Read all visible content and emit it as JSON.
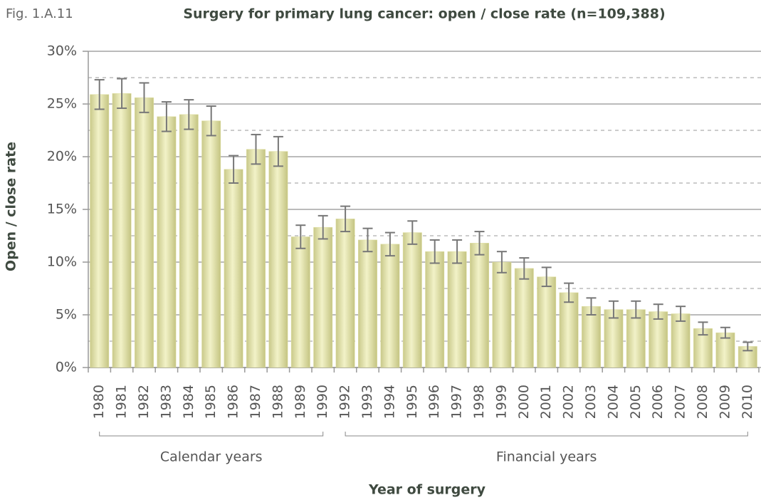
{
  "chart_data": {
    "type": "bar",
    "figure_label": "Fig. 1.A.11",
    "title": "Surgery for primary lung cancer: open / close rate (n=109,388)",
    "x_label": "Year of surgery",
    "y_label": "Open / close rate",
    "categories": [
      "1980",
      "1981",
      "1982",
      "1983",
      "1984",
      "1985",
      "1986",
      "1987",
      "1988",
      "1989",
      "1990",
      "1992",
      "1993",
      "1994",
      "1995",
      "1996",
      "1997",
      "1998",
      "1999",
      "2000",
      "2001",
      "2002",
      "2003",
      "2004",
      "2005",
      "2006",
      "2007",
      "2008",
      "2009",
      "2010"
    ],
    "values": [
      25.9,
      26.0,
      25.6,
      23.8,
      24.0,
      23.4,
      18.8,
      20.7,
      20.5,
      12.4,
      13.3,
      14.1,
      12.1,
      11.7,
      12.8,
      11.0,
      11.0,
      11.8,
      10.0,
      9.4,
      8.6,
      7.1,
      5.8,
      5.5,
      5.5,
      5.3,
      5.1,
      3.7,
      3.3,
      2.0
    ],
    "errors": [
      1.4,
      1.4,
      1.4,
      1.4,
      1.4,
      1.4,
      1.3,
      1.4,
      1.4,
      1.1,
      1.1,
      1.2,
      1.1,
      1.1,
      1.1,
      1.1,
      1.1,
      1.1,
      1.0,
      1.0,
      0.9,
      0.9,
      0.8,
      0.8,
      0.8,
      0.7,
      0.7,
      0.6,
      0.5,
      0.4
    ],
    "color": "#dede9e",
    "error_color": "#777777",
    "ylim": [
      0,
      30
    ],
    "yticks": [
      {
        "value": 0,
        "label": "0%"
      },
      {
        "value": 5,
        "label": "5%"
      },
      {
        "value": 10,
        "label": "10%"
      },
      {
        "value": 15,
        "label": "15%"
      },
      {
        "value": 20,
        "label": "20%"
      },
      {
        "value": 25,
        "label": "25%"
      },
      {
        "value": 30,
        "label": "30%"
      }
    ],
    "minor_yticks": [
      2.5,
      7.5,
      12.5,
      17.5,
      22.5,
      27.5
    ],
    "grid": true,
    "groups": [
      {
        "label": "Calendar years",
        "start": "1980",
        "end": "1990"
      },
      {
        "label": "Financial years",
        "start": "1992",
        "end": "2010"
      }
    ]
  }
}
